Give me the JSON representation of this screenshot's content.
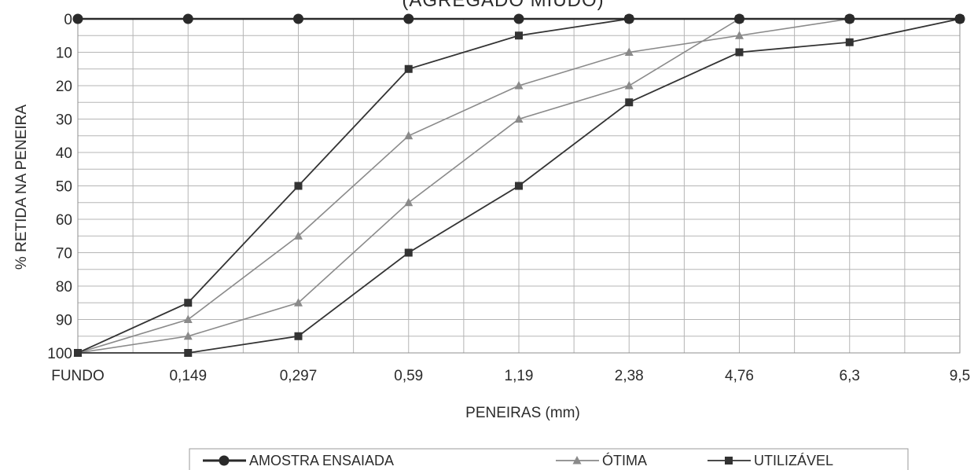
{
  "chart_data": {
    "type": "line",
    "title": "(AGREGADO MIÚDO)",
    "xlabel": "PENEIRAS (mm)",
    "ylabel": "% RETIDA NA PENEIRA",
    "categories": [
      "FUNDO",
      "0,149",
      "0,297",
      "0,59",
      "1,19",
      "2,38",
      "4,76",
      "6,3",
      "9,5"
    ],
    "yticks": [
      "0",
      "10",
      "20",
      "30",
      "40",
      "50",
      "60",
      "70",
      "80",
      "90",
      "100"
    ],
    "ylim": [
      0,
      100
    ],
    "y_inverted": true,
    "grid": true,
    "legend_position": "bottom",
    "series": [
      {
        "name": "AMOSTRA ENSAIADA",
        "marker": "circle",
        "color": "#2a2a2a",
        "values": [
          0,
          0,
          0,
          0,
          0,
          0,
          0,
          0,
          0
        ]
      },
      {
        "name": "ÓTIMA",
        "marker": "triangle",
        "color": "#8a8a8a",
        "values": [
          100,
          90,
          65,
          35,
          20,
          10,
          5,
          0,
          0
        ]
      },
      {
        "name": "ÓTIMA",
        "marker": "triangle",
        "color": "#8a8a8a",
        "values": [
          100,
          95,
          85,
          55,
          30,
          20,
          0,
          0,
          0
        ]
      },
      {
        "name": "UTILIZÁVEL",
        "marker": "square",
        "color": "#333333",
        "values": [
          100,
          85,
          50,
          15,
          5,
          0,
          0,
          0,
          0
        ]
      },
      {
        "name": "UTILIZÁVEL",
        "marker": "square",
        "color": "#333333",
        "values": [
          100,
          100,
          95,
          70,
          50,
          25,
          10,
          7,
          0
        ]
      }
    ],
    "legend": [
      {
        "label": "AMOSTRA ENSAIADA",
        "marker": "circle",
        "color": "#2a2a2a"
      },
      {
        "label": "ÓTIMA",
        "marker": "triangle",
        "color": "#8a8a8a"
      },
      {
        "label": "UTILIZÁVEL",
        "marker": "square",
        "color": "#333333"
      }
    ]
  }
}
